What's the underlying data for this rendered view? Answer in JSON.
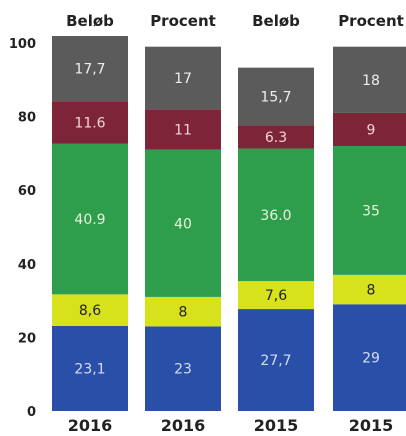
{
  "chart_data": {
    "type": "bar",
    "stacked": true,
    "ylim": [
      0,
      100
    ],
    "yticks": [
      0,
      20,
      40,
      60,
      80,
      100
    ],
    "grid": false,
    "legend": "none",
    "columns": [
      {
        "header": "Beløb",
        "category": "2016",
        "values": [
          23.1,
          8.6,
          40.9,
          11.6,
          17.7
        ],
        "labels": [
          "23,1",
          "8,6",
          "40.9",
          "11.6",
          "17,7"
        ]
      },
      {
        "header": "Procent",
        "category": "2016",
        "values": [
          23,
          8,
          40,
          11,
          17
        ],
        "labels": [
          "23",
          "8",
          "40",
          "11",
          "17"
        ]
      },
      {
        "header": "Beløb",
        "category": "2015",
        "values": [
          27.7,
          7.6,
          36.0,
          6.3,
          15.7
        ],
        "labels": [
          "27,7",
          "7,6",
          "36.0",
          "6.3",
          "15,7"
        ]
      },
      {
        "header": "Procent",
        "category": "2015",
        "values": [
          29,
          8,
          35,
          9,
          18
        ],
        "labels": [
          "29",
          "8",
          "35",
          "9",
          "18"
        ]
      }
    ],
    "segment_colors": [
      "#2a4fa8",
      "#d8e21c",
      "#2e9e4c",
      "#7e2439",
      "#5b5b5b"
    ],
    "label_colors": [
      "#d6dcf2",
      "#222222",
      "#e9f4d8",
      "#f2d2d8",
      "#eeeeee"
    ]
  }
}
